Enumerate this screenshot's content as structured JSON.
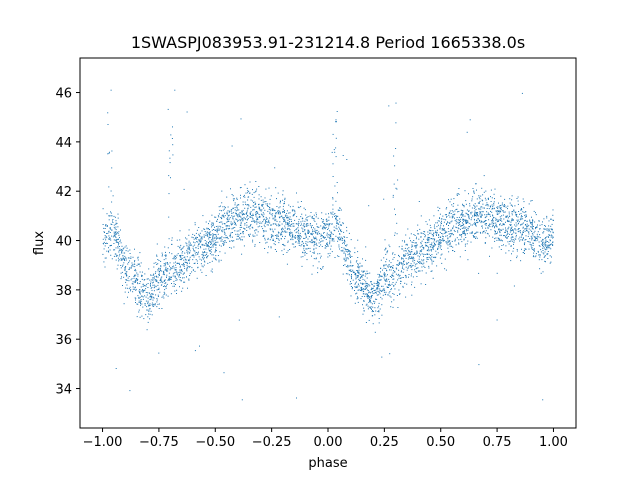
{
  "chart_data": {
    "type": "scatter",
    "title": "1SWASPJ083953.91-231214.8 Period 1665338.0s",
    "xlabel": "phase",
    "ylabel": "flux",
    "xlim": [
      -1.1,
      1.1
    ],
    "ylim": [
      32.4,
      47.4
    ],
    "xticks": [
      -1.0,
      -0.75,
      -0.5,
      -0.25,
      0.0,
      0.25,
      0.5,
      0.75,
      1.0
    ],
    "xtick_labels": [
      "−1.00",
      "−0.75",
      "−0.50",
      "−0.25",
      "0.00",
      "0.25",
      "0.50",
      "0.75",
      "1.00"
    ],
    "yticks": [
      34,
      36,
      38,
      40,
      42,
      44,
      46
    ],
    "ytick_labels": [
      "34",
      "36",
      "38",
      "40",
      "42",
      "44",
      "46"
    ],
    "grid": false,
    "legend": "none",
    "marker_color": "#1f77b4",
    "series": [
      {
        "x": [
          -1.0,
          -0.95,
          -0.9,
          -0.85,
          -0.8,
          -0.75,
          -0.7,
          -0.65,
          -0.6,
          -0.55,
          -0.5,
          -0.45,
          -0.4,
          -0.35,
          -0.3,
          -0.25,
          -0.2,
          -0.15,
          -0.1,
          -0.05,
          0.0,
          0.05,
          0.1,
          0.15,
          0.2,
          0.25,
          0.3,
          0.35,
          0.4,
          0.45,
          0.5,
          0.55,
          0.6,
          0.65,
          0.7,
          0.75,
          0.8,
          0.85,
          0.9,
          0.95,
          1.0
        ],
        "y": [
          39.9,
          40.5,
          38.8,
          38.4,
          37.6,
          38.5,
          38.6,
          39.0,
          39.6,
          39.8,
          40.1,
          40.6,
          40.9,
          41.0,
          41.1,
          40.7,
          40.6,
          40.5,
          40.3,
          40.1,
          40.2,
          40.5,
          38.8,
          38.4,
          37.5,
          38.6,
          38.6,
          39.1,
          39.5,
          39.8,
          40.2,
          40.6,
          40.8,
          41.0,
          41.1,
          40.8,
          40.6,
          40.5,
          40.3,
          40.0,
          40.1
        ]
      }
    ]
  }
}
